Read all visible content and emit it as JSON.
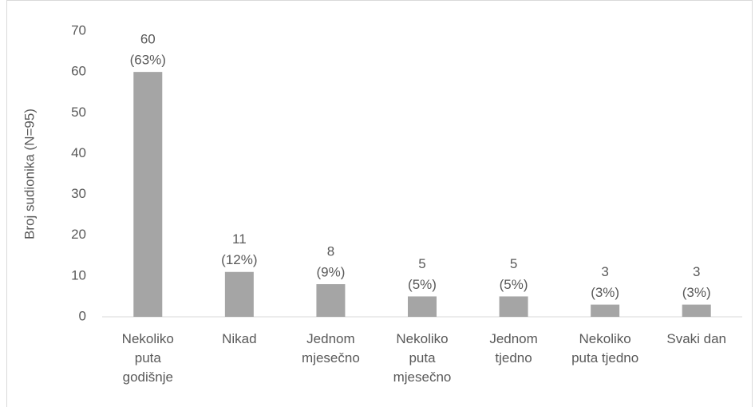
{
  "chart_data": {
    "type": "bar",
    "y_label": "Broj sudionika (N=95)",
    "categories": [
      "Nekoliko puta godišnje",
      "Nikad",
      "Jednom mjesečno",
      "Nekoliko puta mjesečno",
      "Jednom tjedno",
      "Nekoliko puta tjedno",
      "Svaki dan"
    ],
    "values": [
      60,
      11,
      8,
      5,
      5,
      3,
      3
    ],
    "value_labels": [
      [
        "60",
        "(63%)"
      ],
      [
        "11",
        "(12%)"
      ],
      [
        "8",
        "(9%)"
      ],
      [
        "5",
        "(5%)"
      ],
      [
        "5",
        "(5%)"
      ],
      [
        "3",
        "(3%)"
      ],
      [
        "3",
        "(3%)"
      ]
    ],
    "color": "#a5a5a5",
    "ylim": [
      0,
      70
    ],
    "yticks": [
      0,
      10,
      20,
      30,
      40,
      50,
      60,
      70
    ],
    "grid": false
  }
}
